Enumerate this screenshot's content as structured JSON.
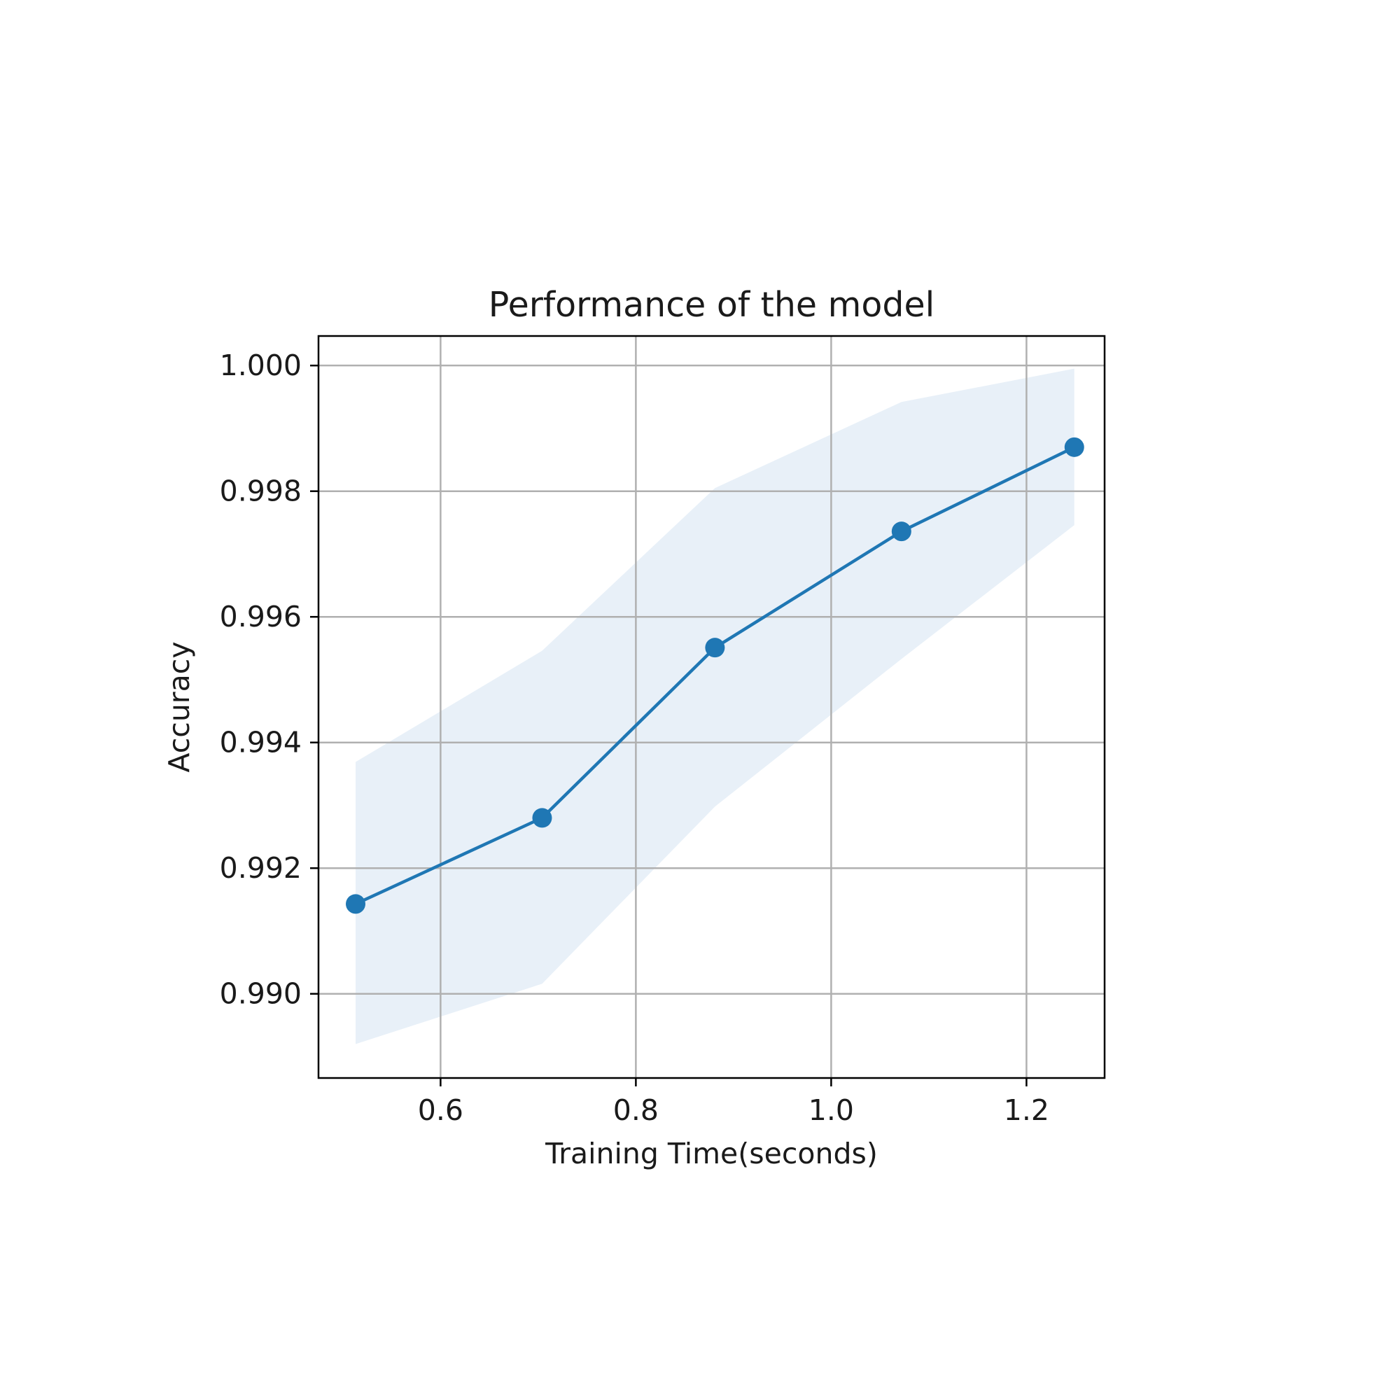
{
  "chart_data": {
    "type": "line",
    "title": "Performance of the model",
    "xlabel": "Training Time(seconds)",
    "ylabel": "Accuracy",
    "xlim": [
      0.475,
      1.28
    ],
    "ylim": [
      0.98866,
      1.00047
    ],
    "x_ticks": [
      0.6,
      0.8,
      1.0,
      1.2
    ],
    "x_tick_labels": [
      "0.6",
      "0.8",
      "1.0",
      "1.2"
    ],
    "y_ticks": [
      0.99,
      0.992,
      0.994,
      0.996,
      0.998,
      1.0
    ],
    "y_tick_labels": [
      "0.990",
      "0.992",
      "0.994",
      "0.996",
      "0.998",
      "1.000"
    ],
    "grid": true,
    "series": [
      {
        "x": [
          0.513,
          0.704,
          0.881,
          1.072,
          1.249
        ],
        "values": [
          0.99143,
          0.9928,
          0.99551,
          0.99736,
          0.9987
        ],
        "band_upper": [
          0.99369,
          0.99546,
          0.99805,
          0.99942,
          0.99995
        ],
        "band_lower": [
          0.9892,
          0.99016,
          0.99298,
          0.99533,
          0.99746
        ],
        "color": "#1f77b4",
        "band_color": "#e8f0f8",
        "marker": "circle"
      }
    ]
  }
}
